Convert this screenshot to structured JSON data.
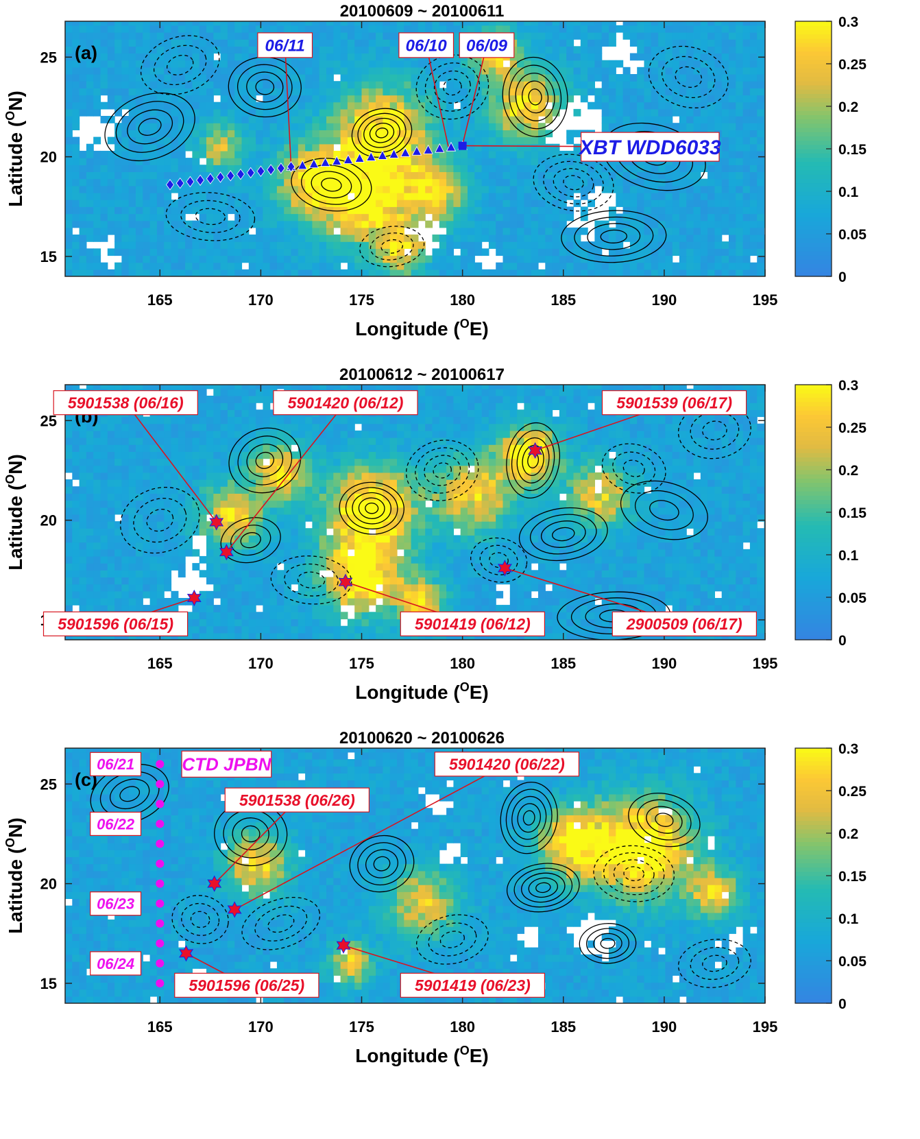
{
  "chart_data": [
    {
      "type": "heatmap",
      "panel_label": "(a)",
      "title": "20100609 ~ 20100611",
      "xlabel": "Longitude",
      "xlabel_sup": "O",
      "xlabel_unit": "E",
      "ylabel": "Latitude",
      "ylabel_sup": "O",
      "ylabel_unit": "N",
      "xlim": [
        160.3,
        195
      ],
      "ylim": [
        14,
        26.8
      ],
      "xticks": [
        165,
        170,
        175,
        180,
        185,
        190,
        195
      ],
      "yticks": [
        15,
        20,
        25
      ],
      "colorbar": {
        "min": 0,
        "max": 0.3,
        "ticks": [
          0,
          0.05,
          0.1,
          0.15,
          0.2,
          0.25,
          0.3
        ],
        "tick_labels": [
          "0",
          "0.05",
          "0.1",
          "0.15",
          "0.2",
          "0.25",
          "0.3"
        ]
      },
      "hotspots": [
        {
          "lon": 176,
          "lat": 21.2,
          "val": 0.27,
          "r": 2.6
        },
        {
          "lon": 175,
          "lat": 17.8,
          "val": 0.26,
          "r": 2.4
        },
        {
          "lon": 172.5,
          "lat": 18.8,
          "val": 0.22,
          "r": 2.0
        },
        {
          "lon": 178.6,
          "lat": 18.2,
          "val": 0.21,
          "r": 1.8
        },
        {
          "lon": 183.2,
          "lat": 22.6,
          "val": 0.22,
          "r": 2.0
        },
        {
          "lon": 181.6,
          "lat": 25.2,
          "val": 0.21,
          "r": 1.4
        },
        {
          "lon": 168,
          "lat": 20.5,
          "val": 0.17,
          "r": 1.3
        },
        {
          "lon": 177,
          "lat": 15.3,
          "val": 0.2,
          "r": 1.4
        }
      ],
      "gaps": [
        {
          "lon": 161.8,
          "lat": 21.5,
          "r": 1.3
        },
        {
          "lon": 162.3,
          "lat": 15.2,
          "r": 0.9
        },
        {
          "lon": 185.4,
          "lat": 21.8,
          "r": 1.5
        },
        {
          "lon": 186.5,
          "lat": 17.2,
          "r": 1.4
        },
        {
          "lon": 178.3,
          "lat": 16.1,
          "r": 0.9
        },
        {
          "lon": 188,
          "lat": 25.2,
          "r": 1.0
        },
        {
          "lon": 181.3,
          "lat": 15.0,
          "r": 0.7
        }
      ],
      "contours": [
        {
          "lon": 164.5,
          "lat": 21.5,
          "rx": 2.3,
          "ry": 1.6,
          "n": 4,
          "sign": 1
        },
        {
          "lon": 170.2,
          "lat": 23.5,
          "rx": 1.8,
          "ry": 1.5,
          "n": 4,
          "sign": 1
        },
        {
          "lon": 176,
          "lat": 21.2,
          "rx": 1.5,
          "ry": 1.2,
          "n": 5,
          "sign": 1
        },
        {
          "lon": 173.5,
          "lat": 18.6,
          "rx": 2.0,
          "ry": 1.3,
          "n": 4,
          "sign": 1
        },
        {
          "lon": 183.6,
          "lat": 23.0,
          "rx": 1.6,
          "ry": 2.0,
          "n": 5,
          "sign": 1
        },
        {
          "lon": 189.5,
          "lat": 20.0,
          "rx": 2.6,
          "ry": 1.6,
          "n": 4,
          "sign": 1
        },
        {
          "lon": 187.5,
          "lat": 16.0,
          "rx": 2.6,
          "ry": 1.3,
          "n": 4,
          "sign": 1
        },
        {
          "lon": 166,
          "lat": 24.6,
          "rx": 2.0,
          "ry": 1.4,
          "n": 3,
          "sign": -1
        },
        {
          "lon": 167.5,
          "lat": 17.0,
          "rx": 2.2,
          "ry": 1.2,
          "n": 3,
          "sign": -1
        },
        {
          "lon": 179.5,
          "lat": 23.5,
          "rx": 1.8,
          "ry": 1.6,
          "n": 4,
          "sign": -1
        },
        {
          "lon": 185.5,
          "lat": 18.7,
          "rx": 2.0,
          "ry": 1.4,
          "n": 4,
          "sign": -1
        },
        {
          "lon": 176.5,
          "lat": 15.5,
          "rx": 1.6,
          "ry": 1.0,
          "n": 3,
          "sign": -1
        },
        {
          "lon": 191.2,
          "lat": 24.0,
          "rx": 2.0,
          "ry": 1.5,
          "n": 3,
          "sign": -1
        }
      ],
      "tracks": [
        {
          "name": "xbt-triangles",
          "marker": "triangle",
          "color": "#1c1ce6",
          "lon_start": 180,
          "lat_start": 20.55,
          "lon_end": 171.5,
          "lat_end": 19.5,
          "count": 16
        },
        {
          "name": "xbt-diamonds",
          "marker": "diamond",
          "color": "#1c1ce6",
          "lon_start": 171.5,
          "lat_start": 19.5,
          "lon_end": 165.5,
          "lat_end": 18.6,
          "count": 13
        },
        {
          "name": "xbt-start",
          "marker": "square",
          "color": "#1c1ce6",
          "lon_start": 180,
          "lat_start": 20.55,
          "lon_end": 180,
          "lat_end": 20.55,
          "count": 1
        }
      ],
      "annotations": [
        {
          "text": "06/11",
          "color": "#1c1ce6",
          "size": 24,
          "box_lon": 171.2,
          "box_lat": 25.6,
          "pt_lon": 171.5,
          "pt_lat": 19.6
        },
        {
          "text": "06/10",
          "color": "#1c1ce6",
          "size": 24,
          "box_lon": 178.2,
          "box_lat": 25.6,
          "pt_lon": 179.3,
          "pt_lat": 20.5
        },
        {
          "text": "06/09",
          "color": "#1c1ce6",
          "size": 24,
          "box_lon": 181.2,
          "box_lat": 25.6,
          "pt_lon": 180.0,
          "pt_lat": 20.6
        },
        {
          "text": "XBT WDD6033",
          "color": "#1c1ce6",
          "size": 30,
          "box_lon": 189.3,
          "box_lat": 20.5,
          "pt_lon": 180.2,
          "pt_lat": 20.55
        }
      ]
    },
    {
      "type": "heatmap",
      "panel_label": "(b)",
      "title": "20100612 ~ 20100617",
      "xlabel": "Longitude",
      "xlabel_sup": "O",
      "xlabel_unit": "E",
      "ylabel": "Latitude",
      "ylabel_sup": "O",
      "ylabel_unit": "N",
      "xlim": [
        160.3,
        195
      ],
      "ylim": [
        14,
        26.8
      ],
      "xticks": [
        165,
        170,
        175,
        180,
        185,
        190,
        195
      ],
      "yticks": [
        15,
        20,
        25
      ],
      "colorbar": {
        "min": 0,
        "max": 0.3,
        "ticks": [
          0,
          0.05,
          0.1,
          0.15,
          0.2,
          0.25,
          0.3
        ],
        "tick_labels": [
          "0",
          "0.05",
          "0.1",
          "0.15",
          "0.2",
          "0.25",
          "0.3"
        ]
      },
      "hotspots": [
        {
          "lon": 175.5,
          "lat": 20.6,
          "val": 0.29,
          "r": 2.4
        },
        {
          "lon": 175.0,
          "lat": 17.2,
          "val": 0.27,
          "r": 2.2
        },
        {
          "lon": 168.5,
          "lat": 20.2,
          "val": 0.21,
          "r": 1.8
        },
        {
          "lon": 171.0,
          "lat": 22.4,
          "val": 0.22,
          "r": 1.6
        },
        {
          "lon": 183.3,
          "lat": 23.3,
          "val": 0.25,
          "r": 1.7
        },
        {
          "lon": 180.5,
          "lat": 21.3,
          "val": 0.2,
          "r": 2.2
        },
        {
          "lon": 186.8,
          "lat": 21.2,
          "val": 0.19,
          "r": 1.8
        },
        {
          "lon": 178.0,
          "lat": 16.0,
          "val": 0.2,
          "r": 1.3
        }
      ],
      "gaps": [
        {
          "lon": 166.4,
          "lat": 16.6,
          "r": 1.1
        },
        {
          "lon": 166.8,
          "lat": 18.6,
          "r": 0.7
        },
        {
          "lon": 174.3,
          "lat": 15.3,
          "r": 0.6
        },
        {
          "lon": 182.0,
          "lat": 16.3,
          "r": 0.5
        },
        {
          "lon": 190.5,
          "lat": 15.4,
          "r": 0.5
        }
      ],
      "contours": [
        {
          "lon": 170.2,
          "lat": 23.0,
          "rx": 1.8,
          "ry": 1.6,
          "n": 4,
          "sign": 1
        },
        {
          "lon": 175.5,
          "lat": 20.6,
          "rx": 1.6,
          "ry": 1.3,
          "n": 5,
          "sign": 1
        },
        {
          "lon": 169.5,
          "lat": 19.0,
          "rx": 1.5,
          "ry": 1.1,
          "n": 3,
          "sign": 1
        },
        {
          "lon": 183.5,
          "lat": 23.0,
          "rx": 1.3,
          "ry": 1.9,
          "n": 5,
          "sign": 1
        },
        {
          "lon": 185.0,
          "lat": 19.3,
          "rx": 2.2,
          "ry": 1.3,
          "n": 4,
          "sign": 1
        },
        {
          "lon": 190.0,
          "lat": 20.5,
          "rx": 2.2,
          "ry": 1.4,
          "n": 3,
          "sign": 1
        },
        {
          "lon": 187.5,
          "lat": 15.2,
          "rx": 2.8,
          "ry": 1.2,
          "n": 4,
          "sign": 1
        },
        {
          "lon": 165.0,
          "lat": 20.0,
          "rx": 2.0,
          "ry": 1.6,
          "n": 3,
          "sign": -1
        },
        {
          "lon": 172.5,
          "lat": 17.0,
          "rx": 2.0,
          "ry": 1.2,
          "n": 3,
          "sign": -1
        },
        {
          "lon": 179.0,
          "lat": 22.5,
          "rx": 1.8,
          "ry": 1.5,
          "n": 4,
          "sign": -1
        },
        {
          "lon": 181.8,
          "lat": 18.0,
          "rx": 1.4,
          "ry": 1.1,
          "n": 3,
          "sign": -1
        },
        {
          "lon": 192.5,
          "lat": 24.5,
          "rx": 1.8,
          "ry": 1.4,
          "n": 3,
          "sign": -1
        },
        {
          "lon": 188.5,
          "lat": 22.6,
          "rx": 1.6,
          "ry": 1.2,
          "n": 3,
          "sign": -1
        }
      ],
      "tracks": [
        {
          "name": "argo-floats",
          "marker": "star",
          "color": "#e8102a",
          "points": [
            [
              167.8,
              19.9
            ],
            [
              168.3,
              18.4
            ],
            [
              166.7,
              16.1
            ],
            [
              174.2,
              16.9
            ],
            [
              183.6,
              23.5
            ],
            [
              182.1,
              17.6
            ]
          ]
        }
      ],
      "annotations": [
        {
          "text": "5901538 (06/16)",
          "color": "#e8102a",
          "size": 23,
          "box_lon": 163.3,
          "box_lat": 25.9,
          "pt_lon": 167.8,
          "pt_lat": 19.9
        },
        {
          "text": "5901420 (06/12)",
          "color": "#e8102a",
          "size": 23,
          "box_lon": 174.2,
          "box_lat": 25.9,
          "pt_lon": 168.3,
          "pt_lat": 18.4
        },
        {
          "text": "5901539 (06/17)",
          "color": "#e8102a",
          "size": 23,
          "box_lon": 190.5,
          "box_lat": 25.9,
          "pt_lon": 183.6,
          "pt_lat": 23.5
        },
        {
          "text": "5901596 (06/15)",
          "color": "#e8102a",
          "size": 23,
          "box_lon": 162.8,
          "box_lat": 14.8,
          "pt_lon": 166.7,
          "pt_lat": 16.1
        },
        {
          "text": "5901419 (06/12)",
          "color": "#e8102a",
          "size": 23,
          "box_lon": 180.5,
          "box_lat": 14.8,
          "pt_lon": 174.2,
          "pt_lat": 16.9
        },
        {
          "text": "2900509 (06/17)",
          "color": "#e8102a",
          "size": 23,
          "box_lon": 191.0,
          "box_lat": 14.8,
          "pt_lon": 182.1,
          "pt_lat": 17.6
        }
      ]
    },
    {
      "type": "heatmap",
      "panel_label": "(c)",
      "title": "20100620 ~ 20100626",
      "xlabel": "Longitude",
      "xlabel_sup": "O",
      "xlabel_unit": "E",
      "ylabel": "Latitude",
      "ylabel_sup": "O",
      "ylabel_unit": "N",
      "xlim": [
        160.3,
        195
      ],
      "ylim": [
        14,
        26.8
      ],
      "xticks": [
        165,
        170,
        175,
        180,
        185,
        190,
        195
      ],
      "yticks": [
        15,
        20,
        25
      ],
      "colorbar": {
        "min": 0,
        "max": 0.3,
        "ticks": [
          0,
          0.05,
          0.1,
          0.15,
          0.2,
          0.25,
          0.3
        ],
        "tick_labels": [
          "0",
          "0.05",
          "0.1",
          "0.15",
          "0.2",
          "0.25",
          "0.3"
        ]
      },
      "hotspots": [
        {
          "lon": 189.0,
          "lat": 21.8,
          "val": 0.29,
          "r": 2.8
        },
        {
          "lon": 185.5,
          "lat": 22.0,
          "val": 0.24,
          "r": 2.0
        },
        {
          "lon": 169.8,
          "lat": 21.0,
          "val": 0.21,
          "r": 1.8
        },
        {
          "lon": 174.5,
          "lat": 16.0,
          "val": 0.21,
          "r": 1.2
        },
        {
          "lon": 178.0,
          "lat": 19.0,
          "val": 0.18,
          "r": 2.0
        },
        {
          "lon": 192.5,
          "lat": 19.5,
          "val": 0.2,
          "r": 1.4
        }
      ],
      "gaps": [
        {
          "lon": 186.5,
          "lat": 17.5,
          "r": 1.2
        },
        {
          "lon": 179.5,
          "lat": 21.5,
          "r": 0.7
        },
        {
          "lon": 183.2,
          "lat": 17.3,
          "r": 0.6
        },
        {
          "lon": 193.5,
          "lat": 17.2,
          "r": 0.6
        },
        {
          "lon": 178.7,
          "lat": 24.0,
          "r": 0.5
        }
      ],
      "contours": [
        {
          "lon": 163.5,
          "lat": 24.5,
          "rx": 2.0,
          "ry": 1.4,
          "n": 4,
          "sign": 1
        },
        {
          "lon": 169.5,
          "lat": 22.5,
          "rx": 1.8,
          "ry": 1.6,
          "n": 4,
          "sign": 1
        },
        {
          "lon": 176.0,
          "lat": 21.0,
          "rx": 1.6,
          "ry": 1.4,
          "n": 4,
          "sign": 1
        },
        {
          "lon": 183.3,
          "lat": 23.3,
          "rx": 1.4,
          "ry": 1.8,
          "n": 5,
          "sign": 1
        },
        {
          "lon": 184.0,
          "lat": 19.8,
          "rx": 1.8,
          "ry": 1.2,
          "n": 5,
          "sign": 1
        },
        {
          "lon": 190.0,
          "lat": 23.2,
          "rx": 1.8,
          "ry": 1.3,
          "n": 4,
          "sign": 1
        },
        {
          "lon": 187.2,
          "lat": 17.0,
          "rx": 1.4,
          "ry": 1.0,
          "n": 4,
          "sign": 1
        },
        {
          "lon": 171.0,
          "lat": 18.0,
          "rx": 2.0,
          "ry": 1.2,
          "n": 3,
          "sign": -1
        },
        {
          "lon": 188.5,
          "lat": 20.5,
          "rx": 2.0,
          "ry": 1.4,
          "n": 4,
          "sign": -1
        },
        {
          "lon": 179.5,
          "lat": 17.2,
          "rx": 1.8,
          "ry": 1.2,
          "n": 3,
          "sign": -1
        },
        {
          "lon": 167.0,
          "lat": 18.2,
          "rx": 1.4,
          "ry": 1.2,
          "n": 3,
          "sign": -1
        },
        {
          "lon": 192.5,
          "lat": 16.0,
          "rx": 1.8,
          "ry": 1.2,
          "n": 3,
          "sign": -1
        }
      ],
      "tracks": [
        {
          "name": "ctd-stations",
          "marker": "dot",
          "color": "#ee10ee",
          "lon_start": 165,
          "lat_start": 26,
          "lon_end": 165,
          "lat_end": 15,
          "count": 12
        },
        {
          "name": "argo-floats",
          "marker": "star",
          "color": "#e8102a",
          "points": [
            [
              167.7,
              20.0
            ],
            [
              168.7,
              18.7
            ],
            [
              166.3,
              16.5
            ],
            [
              174.1,
              16.9
            ]
          ]
        }
      ],
      "annotations": [
        {
          "text": "06/21",
          "color": "#ee10ee",
          "size": 22,
          "box_lon": 162.8,
          "box_lat": 26.0,
          "pt_lon": null,
          "pt_lat": null
        },
        {
          "text": "06/22",
          "color": "#ee10ee",
          "size": 22,
          "box_lon": 162.8,
          "box_lat": 23.0,
          "pt_lon": null,
          "pt_lat": null
        },
        {
          "text": "06/23",
          "color": "#ee10ee",
          "size": 22,
          "box_lon": 162.8,
          "box_lat": 19.0,
          "pt_lon": null,
          "pt_lat": null
        },
        {
          "text": "06/24",
          "color": "#ee10ee",
          "size": 22,
          "box_lon": 162.8,
          "box_lat": 16.0,
          "pt_lon": null,
          "pt_lat": null
        },
        {
          "text": "CTD JPBN",
          "color": "#ee10ee",
          "size": 26,
          "box_lon": 168.3,
          "box_lat": 26.0,
          "pt_lon": null,
          "pt_lat": null
        },
        {
          "text": "5901420 (06/22)",
          "color": "#e8102a",
          "size": 23,
          "box_lon": 182.2,
          "box_lat": 26.0,
          "pt_lon": 168.7,
          "pt_lat": 18.7
        },
        {
          "text": "5901538 (06/26)",
          "color": "#e8102a",
          "size": 23,
          "box_lon": 171.8,
          "box_lat": 24.2,
          "pt_lon": 167.7,
          "pt_lat": 20.0
        },
        {
          "text": "5901596 (06/25)",
          "color": "#e8102a",
          "size": 23,
          "box_lon": 169.3,
          "box_lat": 14.9,
          "pt_lon": 166.3,
          "pt_lat": 16.5
        },
        {
          "text": "5901419 (06/23)",
          "color": "#e8102a",
          "size": 23,
          "box_lon": 180.5,
          "box_lat": 14.9,
          "pt_lon": 174.1,
          "pt_lat": 16.9
        }
      ]
    }
  ]
}
